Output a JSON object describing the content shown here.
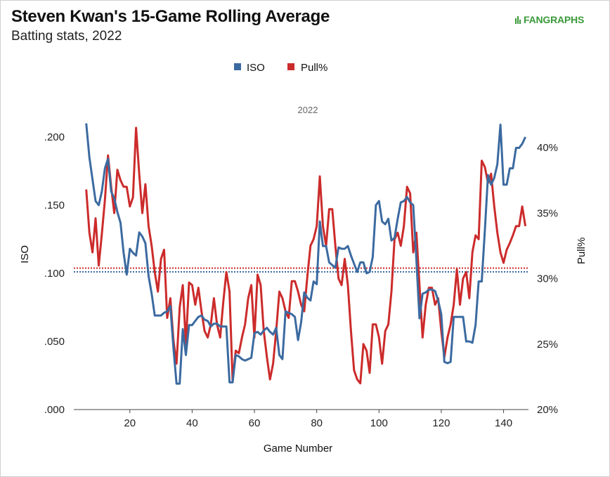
{
  "header": {
    "title": "Steven Kwan's 15-Game Rolling Average",
    "subtitle": "Batting stats, 2022",
    "logo_text": "FANGRAPHS"
  },
  "colors": {
    "iso": "#3b6aa0",
    "pull": "#cc2b2b",
    "logo": "#3a9a3a"
  },
  "chart_data": {
    "type": "line",
    "panel_label": "2022",
    "xlabel": "Game Number",
    "ylabel_left": "ISO",
    "ylabel_right": "Pull%",
    "xlim": [
      2,
      148
    ],
    "ylim_left": [
      0,
      0.2
    ],
    "ylim_right": [
      20,
      42
    ],
    "x_ticks": [
      20,
      40,
      60,
      80,
      100,
      120,
      140
    ],
    "x_tick_labels": [
      "20",
      "40",
      "60",
      "80",
      "100",
      "120",
      "140"
    ],
    "y_left_ticks": [
      0,
      0.05,
      0.1,
      0.15,
      0.2
    ],
    "y_left_tick_labels": [
      ".000",
      ".050",
      ".100",
      ".150",
      ".200"
    ],
    "y_right_ticks": [
      20,
      25,
      30,
      35,
      40
    ],
    "y_right_tick_labels": [
      "20%",
      "25%",
      "30%",
      "35%",
      "40%"
    ],
    "legend_position": "top-center",
    "grid": false,
    "series": [
      {
        "name": "ISO",
        "axis": "left",
        "average": 0.101,
        "points": [
          [
            6,
            0.21
          ],
          [
            7,
            0.185
          ],
          [
            9,
            0.153
          ],
          [
            10,
            0.15
          ],
          [
            11,
            0.16
          ],
          [
            12,
            0.177
          ],
          [
            13,
            0.184
          ],
          [
            14,
            0.16
          ],
          [
            15,
            0.155
          ],
          [
            16,
            0.145
          ],
          [
            17,
            0.137
          ],
          [
            18,
            0.115
          ],
          [
            19,
            0.099
          ],
          [
            20,
            0.118
          ],
          [
            21,
            0.115
          ],
          [
            22,
            0.113
          ],
          [
            23,
            0.13
          ],
          [
            24,
            0.127
          ],
          [
            25,
            0.122
          ],
          [
            26,
            0.098
          ],
          [
            27,
            0.085
          ],
          [
            28,
            0.069
          ],
          [
            29,
            0.069
          ],
          [
            30,
            0.069
          ],
          [
            31,
            0.071
          ],
          [
            32,
            0.072
          ],
          [
            33,
            0.076
          ],
          [
            34,
            0.045
          ],
          [
            35,
            0.019
          ],
          [
            36,
            0.019
          ],
          [
            37,
            0.059
          ],
          [
            38,
            0.04
          ],
          [
            39,
            0.062
          ],
          [
            40,
            0.062
          ],
          [
            41,
            0.065
          ],
          [
            42,
            0.068
          ],
          [
            43,
            0.069
          ],
          [
            44,
            0.066
          ],
          [
            45,
            0.065
          ],
          [
            46,
            0.061
          ],
          [
            47,
            0.063
          ],
          [
            48,
            0.063
          ],
          [
            49,
            0.061
          ],
          [
            50,
            0.061
          ],
          [
            51,
            0.061
          ],
          [
            52,
            0.02
          ],
          [
            53,
            0.02
          ],
          [
            54,
            0.04
          ],
          [
            55,
            0.039
          ],
          [
            56,
            0.037
          ],
          [
            57,
            0.036
          ],
          [
            58,
            0.037
          ],
          [
            59,
            0.038
          ],
          [
            60,
            0.056
          ],
          [
            61,
            0.057
          ],
          [
            62,
            0.055
          ],
          [
            63,
            0.058
          ],
          [
            64,
            0.06
          ],
          [
            65,
            0.057
          ],
          [
            66,
            0.055
          ],
          [
            67,
            0.06
          ],
          [
            68,
            0.04
          ],
          [
            69,
            0.037
          ],
          [
            70,
            0.072
          ],
          [
            71,
            0.071
          ],
          [
            72,
            0.07
          ],
          [
            73,
            0.068
          ],
          [
            74,
            0.051
          ],
          [
            75,
            0.064
          ],
          [
            76,
            0.086
          ],
          [
            77,
            0.082
          ],
          [
            78,
            0.08
          ],
          [
            79,
            0.094
          ],
          [
            80,
            0.092
          ],
          [
            81,
            0.138
          ],
          [
            82,
            0.12
          ],
          [
            83,
            0.12
          ],
          [
            84,
            0.108
          ],
          [
            85,
            0.106
          ],
          [
            86,
            0.104
          ],
          [
            87,
            0.119
          ],
          [
            88,
            0.118
          ],
          [
            89,
            0.118
          ],
          [
            90,
            0.12
          ],
          [
            91,
            0.113
          ],
          [
            92,
            0.107
          ],
          [
            93,
            0.101
          ],
          [
            94,
            0.108
          ],
          [
            95,
            0.108
          ],
          [
            96,
            0.1
          ],
          [
            97,
            0.101
          ],
          [
            98,
            0.112
          ],
          [
            99,
            0.15
          ],
          [
            100,
            0.153
          ],
          [
            101,
            0.138
          ],
          [
            102,
            0.136
          ],
          [
            103,
            0.14
          ],
          [
            104,
            0.124
          ],
          [
            105,
            0.126
          ],
          [
            106,
            0.14
          ],
          [
            107,
            0.152
          ],
          [
            108,
            0.153
          ],
          [
            109,
            0.156
          ],
          [
            110,
            0.152
          ],
          [
            111,
            0.15
          ],
          [
            112,
            0.11
          ],
          [
            113,
            0.067
          ],
          [
            114,
            0.085
          ],
          [
            115,
            0.086
          ],
          [
            116,
            0.088
          ],
          [
            117,
            0.088
          ],
          [
            118,
            0.087
          ],
          [
            119,
            0.08
          ],
          [
            120,
            0.07
          ],
          [
            121,
            0.035
          ],
          [
            122,
            0.034
          ],
          [
            123,
            0.035
          ],
          [
            124,
            0.068
          ],
          [
            125,
            0.068
          ],
          [
            126,
            0.068
          ],
          [
            127,
            0.068
          ],
          [
            128,
            0.05
          ],
          [
            129,
            0.05
          ],
          [
            130,
            0.049
          ],
          [
            131,
            0.062
          ],
          [
            132,
            0.094
          ],
          [
            133,
            0.094
          ],
          [
            134,
            0.132
          ],
          [
            135,
            0.172
          ],
          [
            136,
            0.165
          ],
          [
            137,
            0.17
          ],
          [
            138,
            0.18
          ],
          [
            139,
            0.209
          ],
          [
            140,
            0.165
          ],
          [
            141,
            0.165
          ],
          [
            142,
            0.177
          ],
          [
            143,
            0.177
          ],
          [
            144,
            0.192
          ],
          [
            145,
            0.192
          ],
          [
            146,
            0.195
          ],
          [
            147,
            0.2
          ]
        ]
      },
      {
        "name": "Pull%",
        "axis": "right",
        "average": 30.8,
        "points": [
          [
            6,
            36.8
          ],
          [
            7,
            33.5
          ],
          [
            8,
            32
          ],
          [
            9,
            34.6
          ],
          [
            10,
            31
          ],
          [
            11,
            33.4
          ],
          [
            12,
            36
          ],
          [
            13,
            39.4
          ],
          [
            14,
            37
          ],
          [
            15,
            35
          ],
          [
            16,
            38.3
          ],
          [
            17,
            37.5
          ],
          [
            18,
            37
          ],
          [
            19,
            37
          ],
          [
            20,
            35.5
          ],
          [
            21,
            36.2
          ],
          [
            22,
            41.5
          ],
          [
            23,
            38
          ],
          [
            24,
            35
          ],
          [
            25,
            37.2
          ],
          [
            26,
            34
          ],
          [
            27,
            32.5
          ],
          [
            28,
            30.5
          ],
          [
            29,
            29
          ],
          [
            30,
            31.5
          ],
          [
            31,
            32.2
          ],
          [
            32,
            27
          ],
          [
            33,
            28.5
          ],
          [
            34,
            25.3
          ],
          [
            35,
            23.5
          ],
          [
            36,
            27.8
          ],
          [
            37,
            29.5
          ],
          [
            38,
            25
          ],
          [
            39,
            29.7
          ],
          [
            40,
            29.5
          ],
          [
            41,
            28
          ],
          [
            42,
            29.3
          ],
          [
            43,
            27.5
          ],
          [
            44,
            26
          ],
          [
            45,
            25.5
          ],
          [
            46,
            26.5
          ],
          [
            47,
            28.5
          ],
          [
            48,
            26.5
          ],
          [
            49,
            25.5
          ],
          [
            50,
            28.2
          ],
          [
            51,
            30.5
          ],
          [
            52,
            29
          ],
          [
            53,
            22.2
          ],
          [
            54,
            24.5
          ],
          [
            55,
            24.3
          ],
          [
            56,
            25.5
          ],
          [
            57,
            26.5
          ],
          [
            58,
            28.5
          ],
          [
            59,
            29.5
          ],
          [
            60,
            25.5
          ],
          [
            61,
            30.3
          ],
          [
            62,
            29.5
          ],
          [
            63,
            26
          ],
          [
            64,
            24
          ],
          [
            65,
            22.3
          ],
          [
            66,
            23.5
          ],
          [
            67,
            26
          ],
          [
            68,
            29
          ],
          [
            69,
            28.5
          ],
          [
            70,
            27.5
          ],
          [
            71,
            27
          ],
          [
            72,
            29.8
          ],
          [
            73,
            29.8
          ],
          [
            74,
            29
          ],
          [
            75,
            28
          ],
          [
            76,
            27.5
          ],
          [
            77,
            30.2
          ],
          [
            78,
            32.5
          ],
          [
            79,
            33
          ],
          [
            80,
            34
          ],
          [
            81,
            37.8
          ],
          [
            82,
            34
          ],
          [
            83,
            32.5
          ],
          [
            84,
            35.3
          ],
          [
            85,
            35.3
          ],
          [
            86,
            32.5
          ],
          [
            87,
            30
          ],
          [
            88,
            29.5
          ],
          [
            89,
            31.5
          ],
          [
            90,
            29.5
          ],
          [
            91,
            26
          ],
          [
            92,
            23
          ],
          [
            93,
            22.3
          ],
          [
            94,
            22
          ],
          [
            95,
            25
          ],
          [
            96,
            24.5
          ],
          [
            97,
            22.8
          ],
          [
            98,
            26.5
          ],
          [
            99,
            26.5
          ],
          [
            100,
            25.5
          ],
          [
            101,
            23.5
          ],
          [
            102,
            26
          ],
          [
            103,
            26.5
          ],
          [
            104,
            29
          ],
          [
            105,
            33
          ],
          [
            106,
            33.5
          ],
          [
            107,
            32.5
          ],
          [
            108,
            34
          ],
          [
            109,
            37
          ],
          [
            110,
            36.5
          ],
          [
            111,
            32
          ],
          [
            112,
            33.5
          ],
          [
            113,
            29.5
          ],
          [
            114,
            25.5
          ],
          [
            115,
            28
          ],
          [
            116,
            29.3
          ],
          [
            117,
            29.3
          ],
          [
            118,
            28
          ],
          [
            119,
            28.5
          ],
          [
            120,
            26
          ],
          [
            121,
            24
          ],
          [
            122,
            25.5
          ],
          [
            123,
            26.5
          ],
          [
            124,
            28
          ],
          [
            125,
            30.7
          ],
          [
            126,
            28
          ],
          [
            127,
            30
          ],
          [
            128,
            30.5
          ],
          [
            129,
            28.5
          ],
          [
            130,
            32
          ],
          [
            131,
            33.3
          ],
          [
            132,
            33
          ],
          [
            133,
            39
          ],
          [
            134,
            38.5
          ],
          [
            135,
            37.3
          ],
          [
            136,
            38
          ],
          [
            137,
            35.5
          ],
          [
            138,
            33.5
          ],
          [
            139,
            32
          ],
          [
            140,
            31.2
          ],
          [
            141,
            32.2
          ],
          [
            142,
            32.7
          ],
          [
            143,
            33.3
          ],
          [
            144,
            34
          ],
          [
            145,
            34
          ],
          [
            146,
            35.5
          ],
          [
            147,
            34
          ]
        ]
      }
    ]
  }
}
